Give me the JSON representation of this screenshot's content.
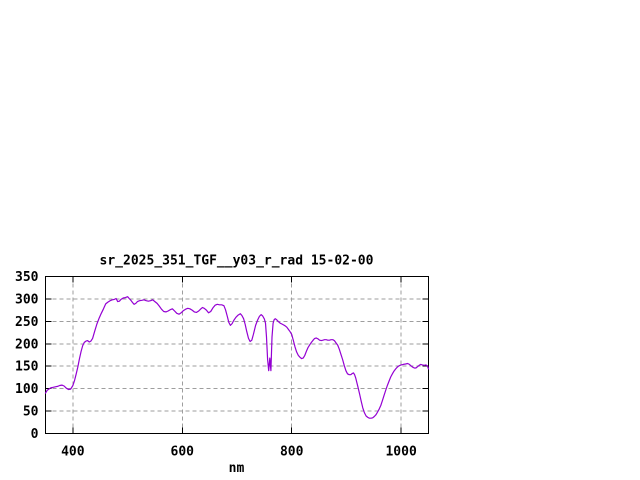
{
  "colors": {
    "background": "#ffffff",
    "axis": "#000000",
    "grid": "#9e9e9e",
    "line": "#9400d3",
    "text": "#000000"
  },
  "chart_data": {
    "type": "line",
    "title": "sr_2025_351_TGF__y03_r_rad 15-02-00",
    "xlabel": "nm",
    "ylabel": "",
    "xlim": [
      350,
      1050
    ],
    "ylim": [
      0,
      350
    ],
    "xticks": [
      400,
      600,
      800,
      1000
    ],
    "yticks": [
      0,
      50,
      100,
      150,
      200,
      250,
      300,
      350
    ],
    "grid": true,
    "legend_position": "none",
    "series": [
      {
        "color": "#9400d3",
        "points": [
          [
            350,
            90
          ],
          [
            353,
            96
          ],
          [
            356,
            99
          ],
          [
            360,
            102
          ],
          [
            364,
            103
          ],
          [
            368,
            104
          ],
          [
            372,
            105
          ],
          [
            376,
            107
          ],
          [
            380,
            108
          ],
          [
            384,
            106
          ],
          [
            388,
            101
          ],
          [
            392,
            98
          ],
          [
            396,
            99
          ],
          [
            400,
            107
          ],
          [
            403,
            118
          ],
          [
            406,
            132
          ],
          [
            409,
            148
          ],
          [
            412,
            166
          ],
          [
            415,
            183
          ],
          [
            418,
            196
          ],
          [
            421,
            203
          ],
          [
            424,
            206
          ],
          [
            427,
            207
          ],
          [
            430,
            204
          ],
          [
            433,
            206
          ],
          [
            436,
            212
          ],
          [
            440,
            228
          ],
          [
            444,
            244
          ],
          [
            448,
            257
          ],
          [
            452,
            268
          ],
          [
            456,
            278
          ],
          [
            460,
            289
          ],
          [
            464,
            293
          ],
          [
            468,
            296
          ],
          [
            472,
            298
          ],
          [
            476,
            299
          ],
          [
            479,
            301
          ],
          [
            482,
            294
          ],
          [
            485,
            295
          ],
          [
            488,
            299
          ],
          [
            492,
            302
          ],
          [
            496,
            303
          ],
          [
            500,
            305
          ],
          [
            503,
            301
          ],
          [
            506,
            297
          ],
          [
            509,
            292
          ],
          [
            512,
            288
          ],
          [
            515,
            290
          ],
          [
            518,
            294
          ],
          [
            522,
            296
          ],
          [
            526,
            297
          ],
          [
            530,
            298
          ],
          [
            534,
            296
          ],
          [
            538,
            295
          ],
          [
            542,
            296
          ],
          [
            546,
            298
          ],
          [
            550,
            294
          ],
          [
            554,
            290
          ],
          [
            558,
            284
          ],
          [
            562,
            277
          ],
          [
            566,
            272
          ],
          [
            570,
            271
          ],
          [
            574,
            273
          ],
          [
            578,
            276
          ],
          [
            582,
            278
          ],
          [
            586,
            273
          ],
          [
            590,
            268
          ],
          [
            594,
            266
          ],
          [
            598,
            269
          ],
          [
            602,
            274
          ],
          [
            606,
            277
          ],
          [
            610,
            279
          ],
          [
            614,
            278
          ],
          [
            618,
            275
          ],
          [
            622,
            271
          ],
          [
            626,
            270
          ],
          [
            630,
            273
          ],
          [
            634,
            278
          ],
          [
            637,
            281
          ],
          [
            640,
            279
          ],
          [
            644,
            275
          ],
          [
            648,
            269
          ],
          [
            652,
            272
          ],
          [
            656,
            280
          ],
          [
            660,
            286
          ],
          [
            664,
            288
          ],
          [
            668,
            287
          ],
          [
            672,
            287
          ],
          [
            676,
            285
          ],
          [
            679,
            276
          ],
          [
            682,
            262
          ],
          [
            685,
            248
          ],
          [
            688,
            241
          ],
          [
            691,
            245
          ],
          [
            694,
            252
          ],
          [
            698,
            259
          ],
          [
            702,
            264
          ],
          [
            706,
            267
          ],
          [
            709,
            263
          ],
          [
            712,
            256
          ],
          [
            715,
            243
          ],
          [
            718,
            227
          ],
          [
            721,
            212
          ],
          [
            724,
            205
          ],
          [
            727,
            208
          ],
          [
            730,
            221
          ],
          [
            734,
            241
          ],
          [
            738,
            254
          ],
          [
            741,
            261
          ],
          [
            744,
            265
          ],
          [
            747,
            262
          ],
          [
            750,
            255
          ],
          [
            752,
            246
          ],
          [
            754,
            215
          ],
          [
            756,
            165
          ],
          [
            758,
            140
          ],
          [
            760,
            168
          ],
          [
            762,
            140
          ],
          [
            764,
            215
          ],
          [
            766,
            246
          ],
          [
            768,
            254
          ],
          [
            770,
            256
          ],
          [
            773,
            253
          ],
          [
            776,
            249
          ],
          [
            779,
            246
          ],
          [
            782,
            244
          ],
          [
            785,
            242
          ],
          [
            788,
            240
          ],
          [
            791,
            237
          ],
          [
            794,
            232
          ],
          [
            797,
            227
          ],
          [
            800,
            221
          ],
          [
            803,
            207
          ],
          [
            806,
            193
          ],
          [
            809,
            182
          ],
          [
            812,
            174
          ],
          [
            815,
            170
          ],
          [
            818,
            167
          ],
          [
            821,
            168
          ],
          [
            824,
            174
          ],
          [
            827,
            184
          ],
          [
            830,
            192
          ],
          [
            833,
            198
          ],
          [
            836,
            203
          ],
          [
            839,
            208
          ],
          [
            842,
            212
          ],
          [
            845,
            213
          ],
          [
            848,
            211
          ],
          [
            851,
            208
          ],
          [
            854,
            207
          ],
          [
            857,
            208
          ],
          [
            860,
            209
          ],
          [
            863,
            209
          ],
          [
            866,
            208
          ],
          [
            869,
            208
          ],
          [
            872,
            209
          ],
          [
            875,
            209
          ],
          [
            878,
            207
          ],
          [
            881,
            202
          ],
          [
            884,
            197
          ],
          [
            887,
            188
          ],
          [
            890,
            176
          ],
          [
            893,
            165
          ],
          [
            896,
            152
          ],
          [
            899,
            140
          ],
          [
            902,
            133
          ],
          [
            905,
            131
          ],
          [
            908,
            131
          ],
          [
            911,
            134
          ],
          [
            913,
            135
          ],
          [
            915,
            131
          ],
          [
            917,
            124
          ],
          [
            919,
            114
          ],
          [
            921,
            104
          ],
          [
            924,
            88
          ],
          [
            927,
            72
          ],
          [
            930,
            57
          ],
          [
            933,
            46
          ],
          [
            936,
            39
          ],
          [
            939,
            36
          ],
          [
            942,
            34
          ],
          [
            945,
            34
          ],
          [
            948,
            35
          ],
          [
            951,
            38
          ],
          [
            954,
            42
          ],
          [
            957,
            48
          ],
          [
            960,
            55
          ],
          [
            963,
            63
          ],
          [
            966,
            74
          ],
          [
            969,
            86
          ],
          [
            972,
            97
          ],
          [
            975,
            108
          ],
          [
            978,
            117
          ],
          [
            981,
            126
          ],
          [
            984,
            133
          ],
          [
            987,
            139
          ],
          [
            990,
            144
          ],
          [
            993,
            148
          ],
          [
            996,
            151
          ],
          [
            1000,
            153
          ],
          [
            1004,
            154
          ],
          [
            1008,
            155
          ],
          [
            1012,
            156
          ],
          [
            1015,
            154
          ],
          [
            1018,
            151
          ],
          [
            1021,
            148
          ],
          [
            1024,
            146
          ],
          [
            1027,
            146
          ],
          [
            1030,
            149
          ],
          [
            1033,
            152
          ],
          [
            1036,
            154
          ],
          [
            1039,
            153
          ],
          [
            1042,
            152
          ],
          [
            1045,
            153
          ],
          [
            1048,
            151
          ],
          [
            1050,
            144
          ]
        ]
      }
    ]
  }
}
